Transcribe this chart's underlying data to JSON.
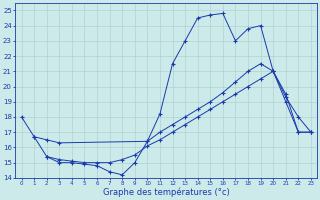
{
  "title": "Graphe des températures (°c)",
  "bg_color": "#cceaea",
  "line_color": "#1a3aaa",
  "xlim": [
    -0.5,
    23.5
  ],
  "ylim": [
    14,
    25.5
  ],
  "xticks": [
    0,
    1,
    2,
    3,
    4,
    5,
    6,
    7,
    8,
    9,
    10,
    11,
    12,
    13,
    14,
    15,
    16,
    17,
    18,
    19,
    20,
    21,
    22,
    23
  ],
  "yticks": [
    14,
    15,
    16,
    17,
    18,
    19,
    20,
    21,
    22,
    23,
    24,
    25
  ],
  "line1_x": [
    0,
    1,
    2,
    3,
    4,
    5,
    6,
    7,
    8,
    9,
    10,
    11,
    12,
    13,
    14,
    15,
    16,
    17,
    18,
    19,
    20,
    21,
    22,
    23
  ],
  "line1_y": [
    18.0,
    16.7,
    15.4,
    15.0,
    15.0,
    14.9,
    14.8,
    14.4,
    14.2,
    15.0,
    16.4,
    18.2,
    21.5,
    23.0,
    24.5,
    24.7,
    24.8,
    23.0,
    23.8,
    24.0,
    21.0,
    19.3,
    18.0,
    17.0
  ],
  "line2_x": [
    1,
    2,
    3,
    10,
    11,
    12,
    13,
    14,
    15,
    16,
    17,
    18,
    19,
    20,
    21,
    22,
    23
  ],
  "line2_y": [
    16.7,
    16.5,
    16.3,
    16.4,
    17.0,
    17.5,
    18.0,
    18.5,
    19.0,
    19.6,
    20.3,
    21.0,
    21.5,
    21.0,
    19.5,
    17.0,
    17.0
  ],
  "line3_x": [
    2,
    3,
    4,
    5,
    6,
    7,
    8,
    9,
    10,
    11,
    12,
    13,
    14,
    15,
    16,
    17,
    18,
    19,
    20,
    21,
    22,
    23
  ],
  "line3_y": [
    15.4,
    15.2,
    15.1,
    15.0,
    15.0,
    15.0,
    15.2,
    15.5,
    16.1,
    16.5,
    17.0,
    17.5,
    18.0,
    18.5,
    19.0,
    19.5,
    20.0,
    20.5,
    21.0,
    19.0,
    17.0,
    17.0
  ]
}
